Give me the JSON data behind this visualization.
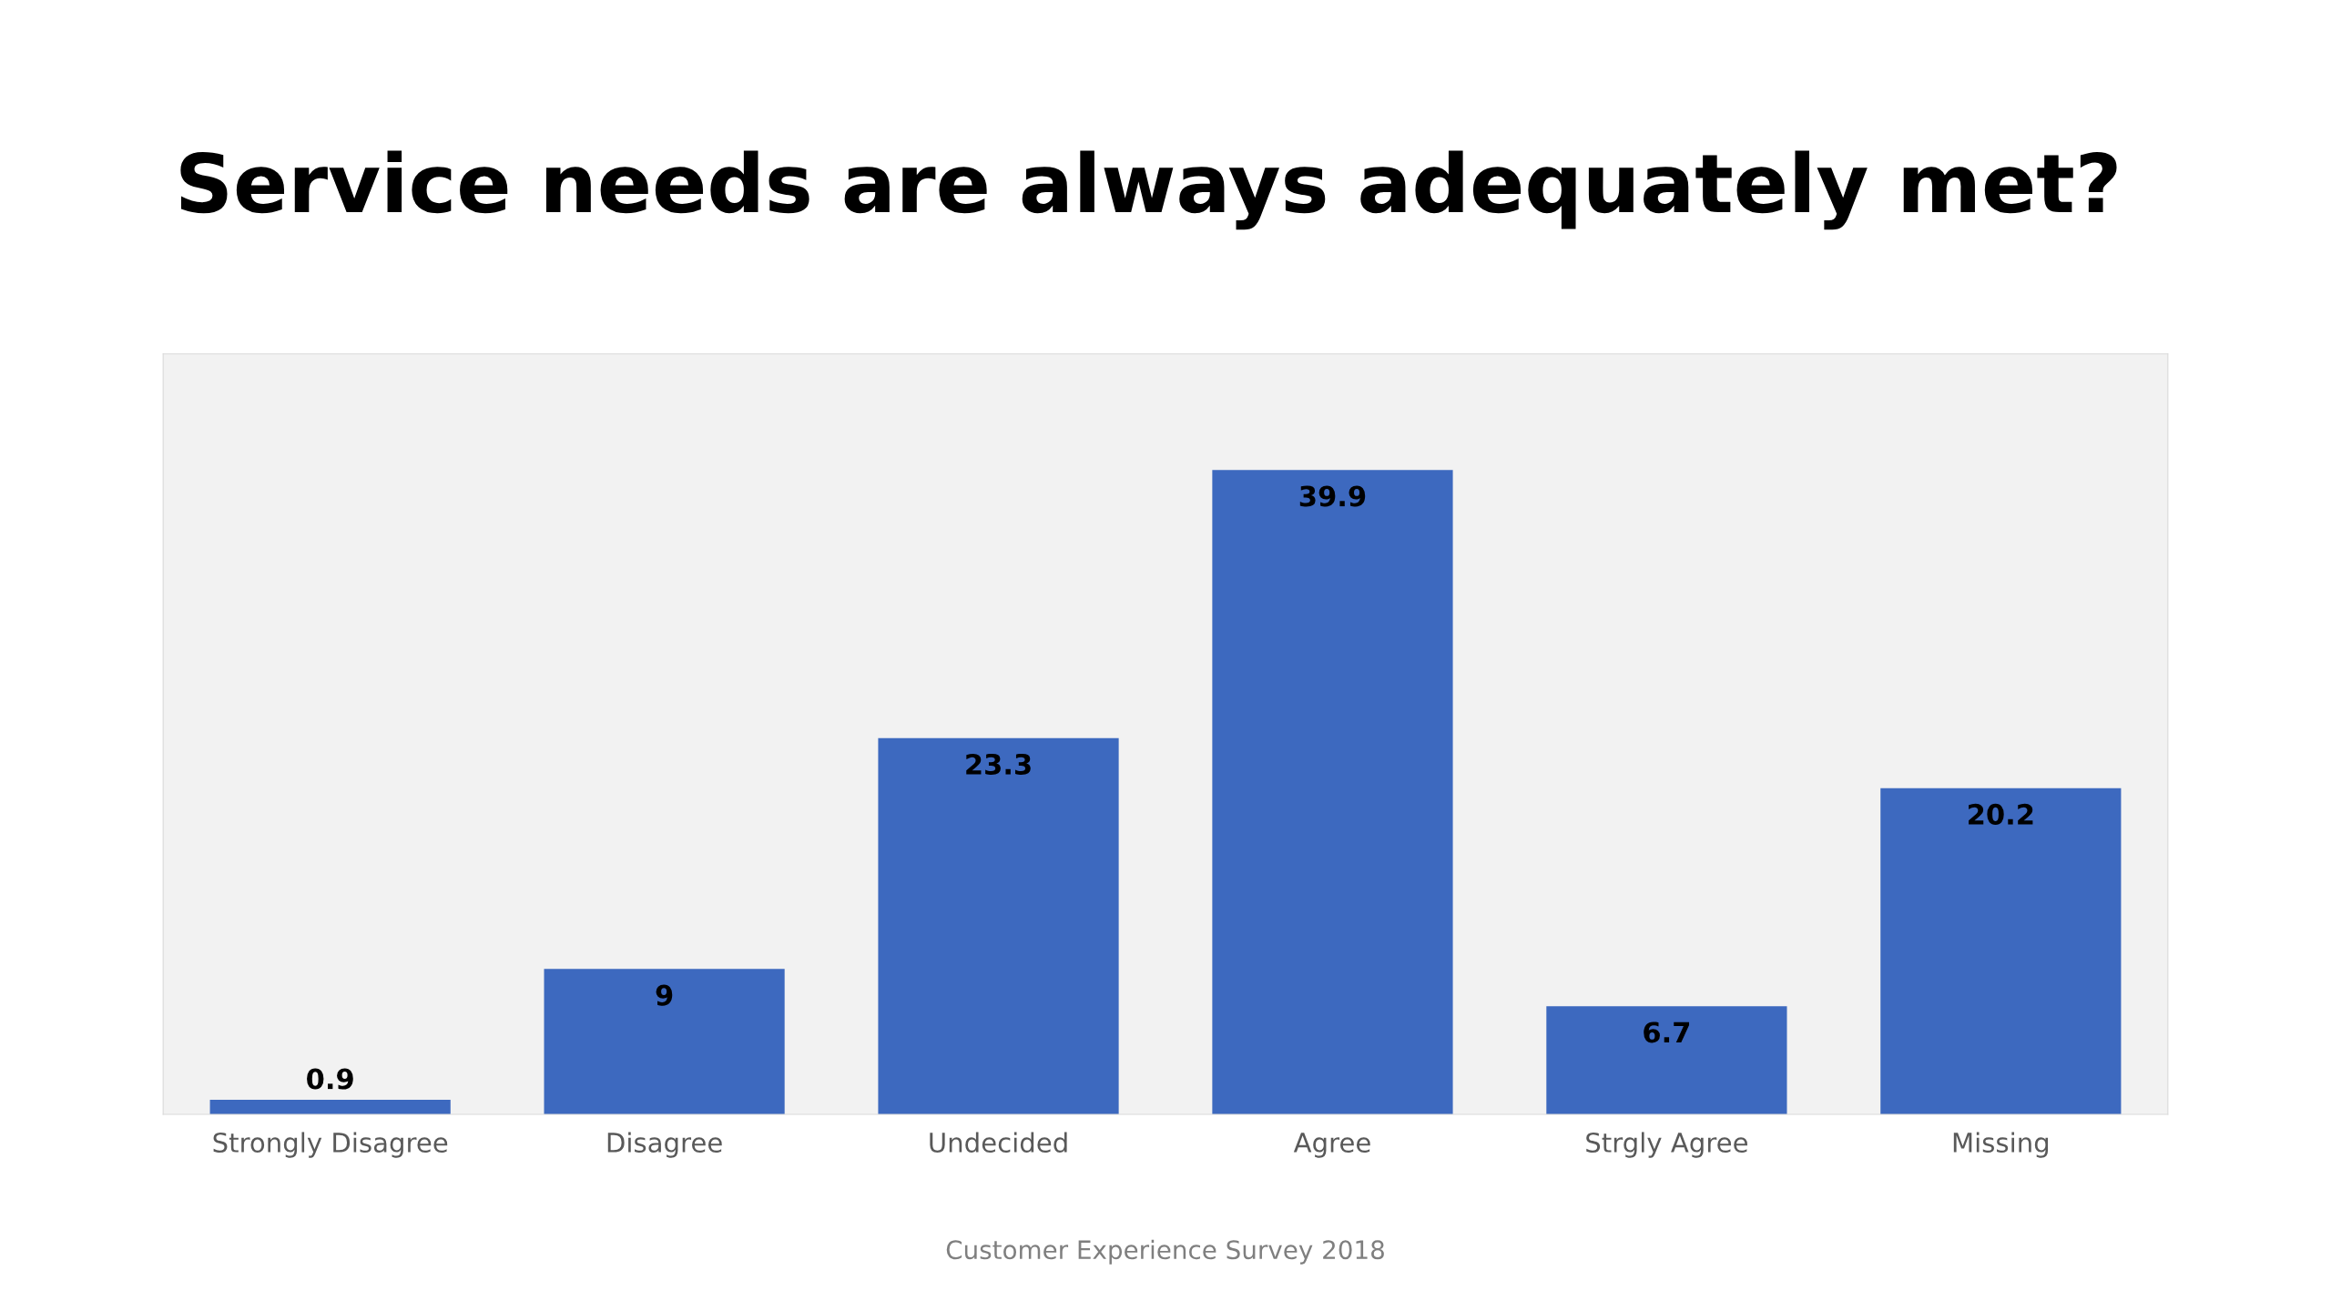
{
  "chart_data": {
    "type": "bar",
    "title": "Service needs are always adequately met?",
    "categories": [
      "Strongly Disagree",
      "Disagree",
      "Undecided",
      "Agree",
      "Strgly Agree",
      "Missing"
    ],
    "values": [
      0.9,
      9,
      23.3,
      39.9,
      6.7,
      20.2
    ],
    "color": "#3d69bf",
    "data_labels": true,
    "tick_labels": "x",
    "annotations": [
      "Customer Experience Survey 2018"
    ]
  }
}
